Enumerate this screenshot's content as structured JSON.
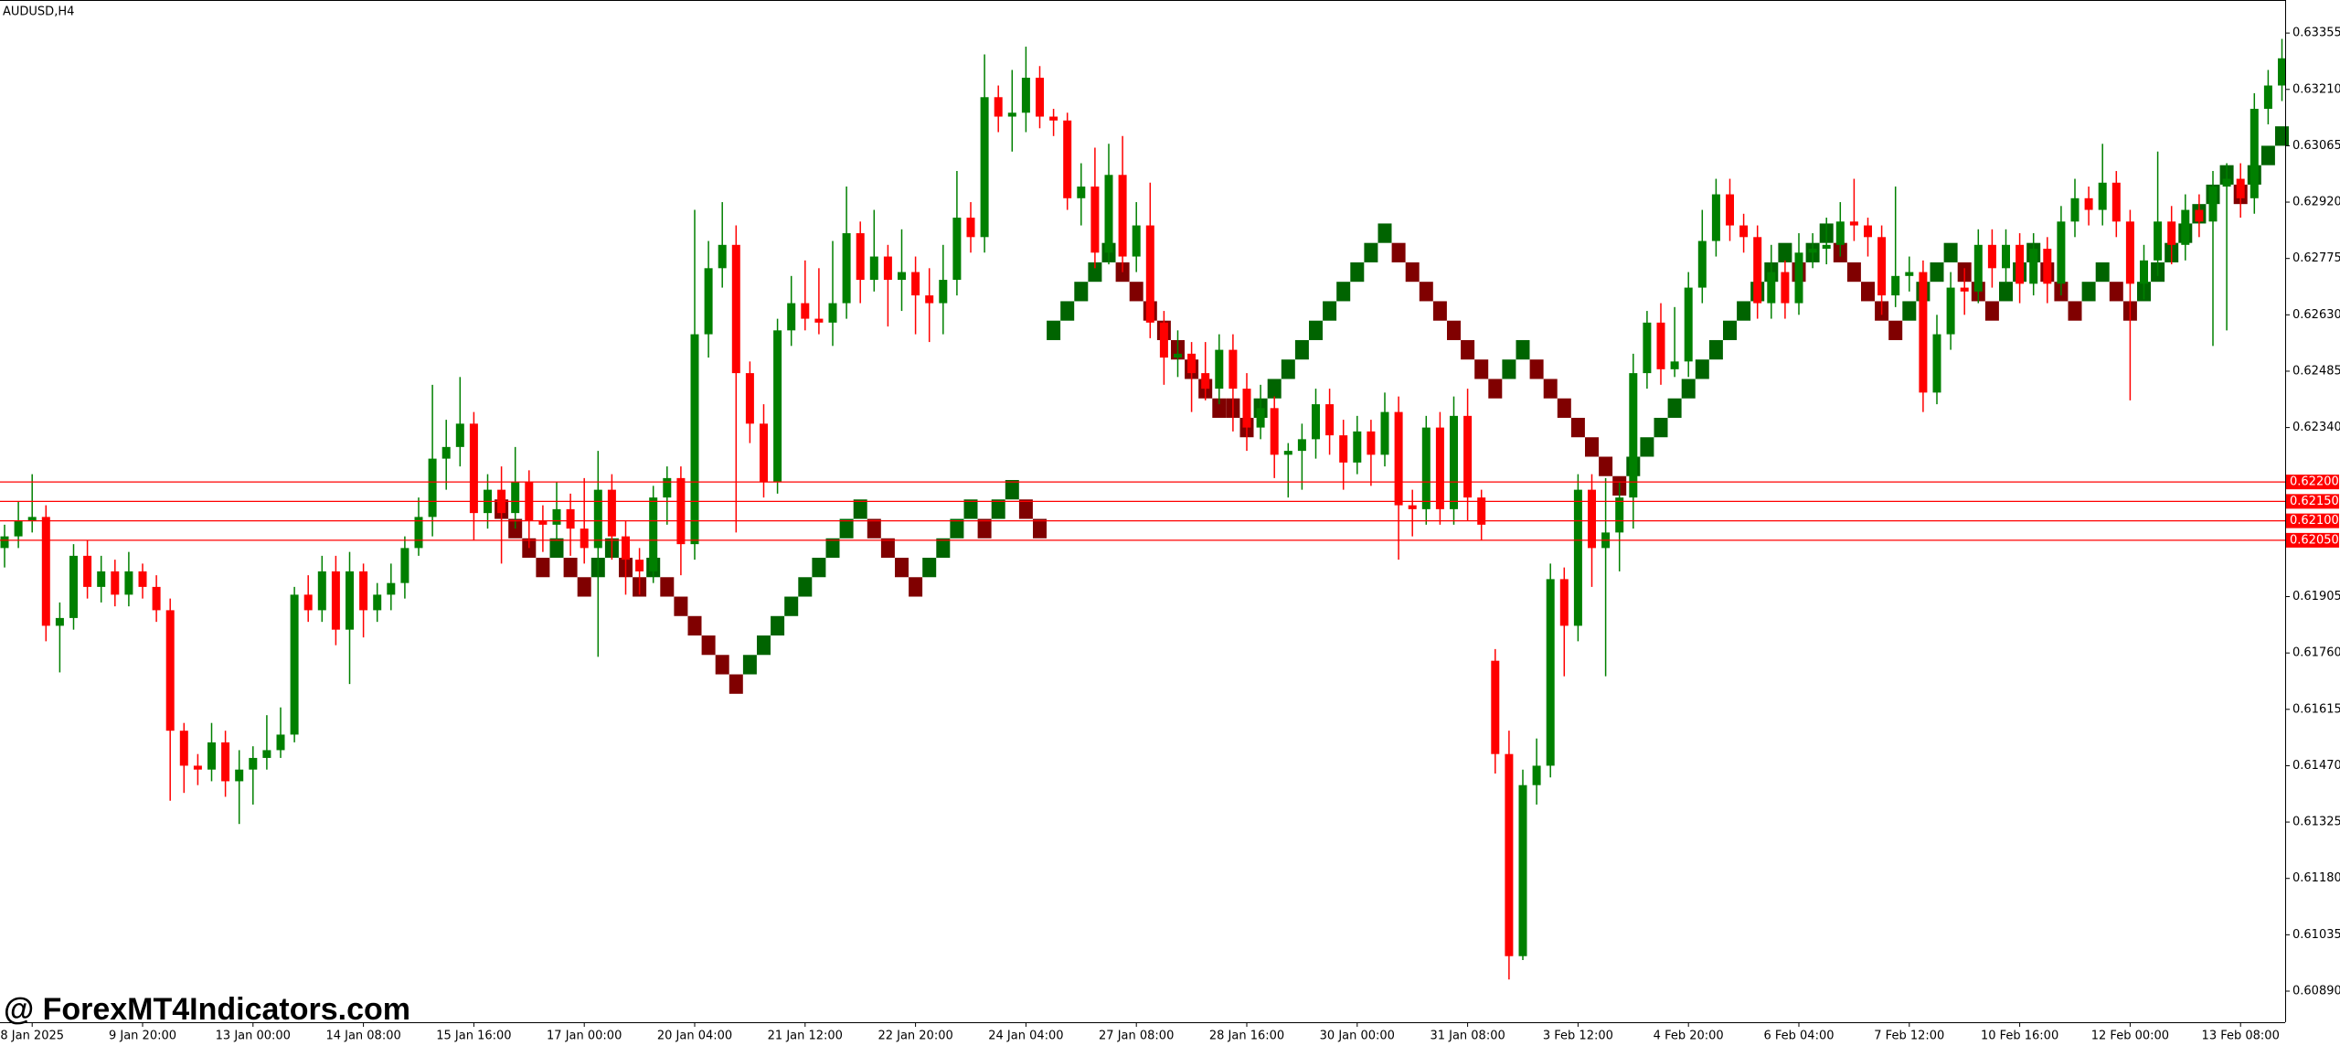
{
  "chart_data": {
    "type": "candlestick",
    "title": "AUDUSD,H4",
    "watermark": "@ ForexMT4Indicators.com",
    "up_color": "#008000",
    "down_color": "#ff0000",
    "ylim": [
      0.6081,
      0.6344
    ],
    "yticks": [
      0.63355,
      {
        "value": 0.6321,
        "label": "0.63210"
      },
      0.63065,
      {
        "value": 0.6292,
        "label": "0.62920"
      },
      0.62775,
      {
        "value": 0.6263,
        "label": "0.62630"
      },
      0.62485,
      {
        "value": 0.6234,
        "label": "0.62340"
      },
      0.61905,
      {
        "value": 0.6176,
        "label": "0.61760"
      },
      0.61615,
      {
        "value": 0.6147,
        "label": "0.61470"
      },
      0.61325,
      {
        "value": 0.6118,
        "label": "0.61180"
      },
      0.61035,
      {
        "value": 0.6089,
        "label": "0.60890"
      }
    ],
    "levels_color": "#ff0000",
    "levels": [
      {
        "value": 0.622,
        "label": "0.62200"
      },
      {
        "value": 0.6215,
        "label": "0.62150"
      },
      {
        "value": 0.621,
        "label": "0.62100"
      },
      {
        "value": 0.6205,
        "label": "0.62050"
      }
    ],
    "categories": [
      null,
      null,
      "8 Jan 2025",
      null,
      null,
      null,
      null,
      null,
      null,
      null,
      "9 Jan 20:00",
      null,
      null,
      null,
      null,
      null,
      null,
      null,
      "13 Jan 00:00",
      null,
      null,
      null,
      null,
      null,
      null,
      null,
      "14 Jan 08:00",
      null,
      null,
      null,
      null,
      null,
      null,
      null,
      "15 Jan 16:00",
      null,
      null,
      null,
      null,
      null,
      null,
      null,
      "17 Jan 00:00",
      null,
      null,
      null,
      null,
      null,
      null,
      null,
      "20 Jan 04:00",
      null,
      null,
      null,
      null,
      null,
      null,
      null,
      "21 Jan 12:00",
      null,
      null,
      null,
      null,
      null,
      null,
      null,
      "22 Jan 20:00",
      null,
      null,
      null,
      null,
      null,
      null,
      null,
      "24 Jan 04:00",
      null,
      null,
      null,
      null,
      null,
      null,
      null,
      "27 Jan 08:00",
      null,
      null,
      null,
      null,
      null,
      null,
      null,
      "28 Jan 16:00",
      null,
      null,
      null,
      null,
      null,
      null,
      null,
      "30 Jan 00:00",
      null,
      null,
      null,
      null,
      null,
      null,
      null,
      "31 Jan 08:00",
      null,
      null,
      null,
      null,
      null,
      null,
      null,
      "3 Feb 12:00",
      null,
      null,
      null,
      null,
      null,
      null,
      null,
      "4 Feb 20:00",
      null,
      null,
      null,
      null,
      null,
      null,
      null,
      "6 Feb 04:00",
      null,
      null,
      null,
      null,
      null,
      null,
      null,
      "7 Feb 12:00",
      null,
      null,
      null,
      null,
      null,
      null,
      null,
      "10 Feb 16:00",
      null,
      null,
      null,
      null,
      null,
      null,
      null,
      "12 Feb 00:00",
      null,
      null,
      null,
      null,
      null,
      null,
      null,
      "13 Feb 08:00",
      null,
      null,
      null
    ],
    "open": [
      0.6203,
      0.6206,
      0.621,
      0.6211,
      0.6183,
      0.6185,
      0.6201,
      0.6193,
      0.6197,
      0.6191,
      0.6197,
      0.6193,
      0.6187,
      0.6156,
      0.6147,
      0.6146,
      0.6153,
      0.6143,
      0.6146,
      0.6149,
      0.6151,
      0.6155,
      0.6191,
      0.6187,
      0.6197,
      0.6182,
      0.6197,
      0.6187,
      0.6191,
      0.6194,
      0.6203,
      0.6211,
      0.6226,
      0.6229,
      0.6235,
      0.6212,
      0.6218,
      0.6212,
      0.622,
      0.621,
      0.6209,
      0.6213,
      0.6208,
      0.6203,
      0.6218,
      0.6206,
      0.62,
      0.6197,
      0.6216,
      0.6221,
      0.6204,
      0.6258,
      0.6275,
      0.6281,
      0.6248,
      0.6235,
      0.622,
      0.6259,
      0.6266,
      0.6262,
      0.6261,
      0.6266,
      0.6284,
      0.6272,
      0.6278,
      0.6272,
      0.6274,
      0.6268,
      0.6266,
      0.6272,
      0.6288,
      0.6283,
      0.6319,
      0.6314,
      0.6315,
      0.6324,
      0.6314,
      0.6313,
      0.6293,
      0.6296,
      0.6279,
      0.6299,
      0.6278,
      0.6286,
      0.6261,
      0.6252,
      0.6253,
      0.6248,
      0.6244,
      0.6254,
      0.6244,
      0.6234,
      0.6239,
      0.6227,
      0.6228,
      0.6231,
      0.624,
      0.6232,
      0.6225,
      0.6233,
      0.6227,
      0.6238,
      0.6214,
      0.6213,
      0.6234,
      0.6213,
      0.6237,
      0.6216,
      0.6174,
      0.615,
      0.6098,
      0.6142,
      0.6147,
      0.6195,
      0.6183,
      0.6218,
      0.6203,
      0.6207,
      0.6216,
      0.6248,
      0.6261,
      0.6249,
      0.6251,
      0.627,
      0.6282,
      0.6294,
      0.6286,
      0.6283,
      0.6266,
      0.6274,
      0.6266,
      0.6279,
      0.628,
      0.6281,
      0.6287,
      0.6286,
      0.6283,
      0.6268,
      0.6273,
      0.6274,
      0.6243,
      0.6258,
      0.627,
      0.6269,
      0.6281,
      0.6275,
      0.6281,
      0.6271,
      0.628,
      0.6271,
      0.6287,
      0.6293,
      0.629,
      0.6297,
      0.6287,
      0.6271,
      0.6277,
      0.6287,
      0.6281,
      0.629,
      0.6287,
      0.6296,
      0.6298,
      0.6293,
      0.6316,
      0.6322
    ],
    "high": [
      0.6209,
      0.6215,
      0.6222,
      0.6214,
      0.6189,
      0.6204,
      0.6205,
      0.6201,
      0.62,
      0.6202,
      0.6199,
      0.6196,
      0.619,
      0.6158,
      0.615,
      0.6158,
      0.6156,
      0.6151,
      0.6152,
      0.616,
      0.6162,
      0.6193,
      0.6196,
      0.6201,
      0.6201,
      0.6202,
      0.6199,
      0.6194,
      0.6199,
      0.6206,
      0.6216,
      0.6245,
      0.6236,
      0.6247,
      0.6238,
      0.6222,
      0.6224,
      0.6229,
      0.6223,
      0.6214,
      0.622,
      0.6217,
      0.6221,
      0.6228,
      0.6222,
      0.621,
      0.6203,
      0.6219,
      0.6224,
      0.6224,
      0.629,
      0.6282,
      0.6292,
      0.6286,
      0.6251,
      0.624,
      0.6262,
      0.6273,
      0.6277,
      0.6275,
      0.6282,
      0.6296,
      0.6287,
      0.629,
      0.6281,
      0.6285,
      0.6278,
      0.6275,
      0.6281,
      0.63,
      0.6292,
      0.633,
      0.6322,
      0.6326,
      0.6332,
      0.6327,
      0.6316,
      0.6315,
      0.6302,
      0.6306,
      0.6307,
      0.6309,
      0.6292,
      0.6297,
      0.6264,
      0.6259,
      0.6256,
      0.6256,
      0.6258,
      0.6258,
      0.6248,
      0.6245,
      0.6242,
      0.623,
      0.6235,
      0.6244,
      0.6244,
      0.6236,
      0.6237,
      0.6236,
      0.6243,
      0.6242,
      0.6218,
      0.6237,
      0.6238,
      0.6242,
      0.6244,
      0.6218,
      0.6177,
      0.6156,
      0.6146,
      0.6154,
      0.6199,
      0.6198,
      0.6222,
      0.6222,
      0.6221,
      0.622,
      0.6253,
      0.6264,
      0.6266,
      0.6265,
      0.6274,
      0.629,
      0.6298,
      0.6298,
      0.6289,
      0.6286,
      0.6281,
      0.6277,
      0.6284,
      0.6284,
      0.6288,
      0.6292,
      0.6298,
      0.6288,
      0.6286,
      0.6296,
      0.6278,
      0.6277,
      0.6263,
      0.6274,
      0.6275,
      0.6285,
      0.6285,
      0.6285,
      0.6284,
      0.6284,
      0.6283,
      0.6291,
      0.6298,
      0.6296,
      0.6307,
      0.63,
      0.629,
      0.6281,
      0.6305,
      0.6291,
      0.6294,
      0.6294,
      0.63,
      0.6302,
      0.6302,
      0.632,
      0.6326,
      0.6334
    ],
    "low": [
      0.6198,
      0.6203,
      0.6207,
      0.6179,
      0.6171,
      0.6182,
      0.619,
      0.6189,
      0.6188,
      0.6188,
      0.619,
      0.6184,
      0.6138,
      0.614,
      0.6142,
      0.6143,
      0.6139,
      0.6132,
      0.6137,
      0.6146,
      0.6149,
      0.6153,
      0.6184,
      0.6184,
      0.6178,
      0.6168,
      0.618,
      0.6184,
      0.6187,
      0.619,
      0.6201,
      0.6206,
      0.6218,
      0.6224,
      0.6205,
      0.6208,
      0.6199,
      0.6208,
      0.6203,
      0.6202,
      0.6205,
      0.6201,
      0.6199,
      0.6175,
      0.62,
      0.6191,
      0.6191,
      0.6194,
      0.6209,
      0.6196,
      0.62,
      0.6252,
      0.627,
      0.6207,
      0.623,
      0.6216,
      0.6217,
      0.6255,
      0.6259,
      0.6258,
      0.6255,
      0.6262,
      0.6266,
      0.6269,
      0.626,
      0.6264,
      0.6258,
      0.6256,
      0.6258,
      0.6268,
      0.6279,
      0.6279,
      0.631,
      0.6305,
      0.631,
      0.6311,
      0.6309,
      0.629,
      0.6286,
      0.6275,
      0.6276,
      0.6274,
      0.6274,
      0.6257,
      0.6245,
      0.6247,
      0.6238,
      0.6241,
      0.624,
      0.6233,
      0.6228,
      0.6231,
      0.6221,
      0.6216,
      0.6218,
      0.6226,
      0.6227,
      0.6218,
      0.6222,
      0.6219,
      0.6224,
      0.62,
      0.6206,
      0.6209,
      0.6209,
      0.6209,
      0.621,
      0.6205,
      0.6145,
      0.6092,
      0.6097,
      0.6137,
      0.6144,
      0.617,
      0.6179,
      0.6193,
      0.617,
      0.6197,
      0.6208,
      0.6244,
      0.6245,
      0.6247,
      0.6247,
      0.6266,
      0.6278,
      0.6282,
      0.6279,
      0.6262,
      0.6262,
      0.6262,
      0.6263,
      0.6275,
      0.6276,
      0.6278,
      0.6282,
      0.6278,
      0.6263,
      0.6265,
      0.6269,
      0.6238,
      0.624,
      0.6254,
      0.6263,
      0.6266,
      0.627,
      0.6271,
      0.6266,
      0.6268,
      0.6266,
      0.6268,
      0.6283,
      0.6286,
      0.6286,
      0.6283,
      0.6241,
      0.6267,
      0.6273,
      0.6276,
      0.6277,
      0.6283,
      0.6255,
      0.6259,
      0.6288,
      0.6289,
      0.6312,
      0.6318
    ],
    "close": [
      0.6206,
      0.621,
      0.6211,
      0.6183,
      0.6185,
      0.6201,
      0.6193,
      0.6197,
      0.6191,
      0.6197,
      0.6193,
      0.6187,
      0.6156,
      0.6147,
      0.6146,
      0.6153,
      0.6143,
      0.6146,
      0.6149,
      0.6151,
      0.6155,
      0.6191,
      0.6187,
      0.6197,
      0.6182,
      0.6197,
      0.6187,
      0.6191,
      0.6194,
      0.6203,
      0.6211,
      0.6226,
      0.6229,
      0.6235,
      0.6212,
      0.6218,
      0.6212,
      0.622,
      0.621,
      0.6209,
      0.6213,
      0.6208,
      0.6203,
      0.6218,
      0.6206,
      0.62,
      0.6197,
      0.6216,
      0.6221,
      0.6204,
      0.6258,
      0.6275,
      0.6281,
      0.6248,
      0.6235,
      0.622,
      0.6259,
      0.6266,
      0.6262,
      0.6261,
      0.6266,
      0.6284,
      0.6272,
      0.6278,
      0.6272,
      0.6274,
      0.6268,
      0.6266,
      0.6272,
      0.6288,
      0.6283,
      0.6319,
      0.6314,
      0.6315,
      0.6324,
      0.6314,
      0.6313,
      0.6293,
      0.6296,
      0.6279,
      0.6299,
      0.6278,
      0.6286,
      0.6261,
      0.6252,
      0.6253,
      0.6248,
      0.6244,
      0.6254,
      0.6244,
      0.6234,
      0.6239,
      0.6227,
      0.6228,
      0.6231,
      0.624,
      0.6232,
      0.6225,
      0.6233,
      0.6227,
      0.6238,
      0.6214,
      0.6213,
      0.6234,
      0.6213,
      0.6237,
      0.6216,
      0.6209,
      0.615,
      0.6098,
      0.6142,
      0.6147,
      0.6195,
      0.6183,
      0.6218,
      0.6203,
      0.6207,
      0.6216,
      0.6248,
      0.6261,
      0.6249,
      0.6251,
      0.627,
      0.6282,
      0.6294,
      0.6286,
      0.6283,
      0.6266,
      0.6274,
      0.6266,
      0.6279,
      0.628,
      0.6281,
      0.6287,
      0.6286,
      0.6283,
      0.6268,
      0.6273,
      0.6274,
      0.6243,
      0.6258,
      0.627,
      0.6269,
      0.6281,
      0.6275,
      0.6281,
      0.6271,
      0.628,
      0.6271,
      0.6287,
      0.6293,
      0.629,
      0.6297,
      0.6287,
      0.6271,
      0.6277,
      0.6287,
      0.6281,
      0.629,
      0.6287,
      0.6296,
      0.6298,
      0.6293,
      0.6316,
      0.6322,
      0.6329
    ],
    "renko": {
      "brick": 0.0005,
      "up_color": "#006400",
      "down_color": "#800000",
      "x": [
        36,
        37,
        38,
        39,
        40,
        41,
        42,
        43,
        44,
        45,
        46,
        47,
        48,
        49,
        50,
        51,
        52,
        53,
        54,
        55,
        56,
        57,
        58,
        59,
        60,
        61,
        62,
        63,
        64,
        65,
        66,
        67,
        68,
        69,
        70,
        71,
        72,
        73,
        74,
        75,
        76,
        77,
        78,
        79,
        80,
        81,
        82,
        83,
        84,
        85,
        86,
        87,
        88,
        89,
        90,
        91,
        92,
        93,
        94,
        95,
        96,
        97,
        98,
        99,
        100,
        101,
        102,
        103,
        104,
        105,
        106,
        107,
        108,
        109,
        110,
        111,
        112,
        113,
        114,
        115,
        116,
        117,
        118,
        119,
        120,
        121,
        122,
        123,
        124,
        125,
        126,
        127,
        128,
        129,
        130,
        131,
        132,
        133,
        134,
        135,
        136,
        137,
        138,
        139,
        140,
        141,
        142,
        143,
        144,
        145,
        146,
        147,
        148,
        149,
        150,
        151,
        152,
        153,
        154,
        155,
        156,
        157,
        158,
        159,
        160,
        161,
        162,
        163,
        164,
        165
      ],
      "values": [
        0.6213,
        0.6208,
        0.6203,
        0.6198,
        0.6203,
        0.6198,
        0.6193,
        0.6198,
        0.6203,
        0.6198,
        0.6193,
        0.6198,
        0.6193,
        0.6188,
        0.6183,
        0.6178,
        0.6173,
        0.6168,
        0.6173,
        0.6178,
        0.6183,
        0.6188,
        0.6193,
        0.6198,
        0.6203,
        0.6208,
        0.6213,
        0.6208,
        0.6203,
        0.6198,
        0.6193,
        0.6198,
        0.6203,
        0.6208,
        0.6213,
        0.6208,
        0.6213,
        0.6218,
        0.6213,
        0.6208,
        0.6259,
        0.6264,
        0.6269,
        0.6274,
        0.6279,
        0.6274,
        0.6269,
        0.6264,
        0.6259,
        0.6254,
        0.6249,
        0.6244,
        0.6239,
        0.6239,
        0.6234,
        0.6239,
        0.6244,
        0.6249,
        0.6254,
        0.6259,
        0.6264,
        0.6269,
        0.6274,
        0.6279,
        0.6284,
        0.6279,
        0.6274,
        0.6269,
        0.6264,
        0.6259,
        0.6254,
        0.6249,
        0.6244,
        0.6249,
        0.6254,
        0.6249,
        0.6244,
        0.6239,
        0.6234,
        0.6229,
        0.6224,
        0.6219,
        0.6224,
        0.6229,
        0.6234,
        0.6239,
        0.6244,
        0.6249,
        0.6254,
        0.6259,
        0.6264,
        0.6269,
        0.6274,
        0.6279,
        0.6274,
        0.6279,
        0.6284,
        0.6279,
        0.6274,
        0.6269,
        0.6264,
        0.6259,
        0.6264,
        0.6269,
        0.6274,
        0.6279,
        0.6274,
        0.6269,
        0.6264,
        0.6269,
        0.6274,
        0.6279,
        0.6274,
        0.6269,
        0.6264,
        0.6269,
        0.6274,
        0.6269,
        0.6264,
        0.6269,
        0.6274,
        0.6279,
        0.6284,
        0.6289,
        0.6294,
        0.6299,
        0.6294,
        0.6299,
        0.6304,
        0.6309
      ]
    }
  }
}
